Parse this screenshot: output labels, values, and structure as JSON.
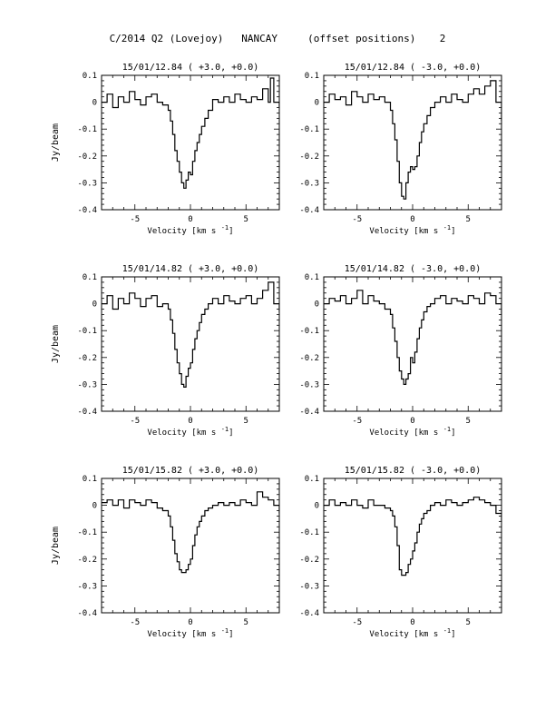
{
  "figure": {
    "title": "C/2014 Q2 (Lovejoy)   NANCAY     (offset positions)    2"
  },
  "chart_data": [
    {
      "type": "line",
      "title": "15/01/12.84  ( +3.0, +0.0)",
      "xlabel": "Velocity [km s",
      "xlabel_sup": "-1",
      "xlabel_close": "]",
      "ylabel": "Jy/beam",
      "xlim": [
        -8,
        8
      ],
      "ylim": [
        -0.4,
        0.1
      ],
      "xticks": [
        -5,
        0,
        5
      ],
      "yticks": [
        -0.4,
        -0.3,
        -0.2,
        -0.1,
        0,
        0.1
      ],
      "ytick_labels": [
        "-0.4",
        "-0.3",
        "-0.2",
        "-0.1",
        "0",
        "0.1"
      ],
      "series": [
        {
          "x": [
            -8,
            -7.5,
            -7,
            -6.5,
            -6,
            -5.5,
            -5,
            -4.5,
            -4,
            -3.5,
            -3,
            -2.5,
            -2,
            -1.8,
            -1.6,
            -1.4,
            -1.2,
            -1.0,
            -0.8,
            -0.6,
            -0.4,
            -0.2,
            0,
            0.2,
            0.4,
            0.6,
            0.8,
            1.0,
            1.3,
            1.6,
            2,
            2.5,
            3,
            3.5,
            4,
            4.5,
            5,
            5.5,
            6,
            6.5,
            7,
            7.2,
            7.5,
            8
          ],
          "y": [
            0.0,
            0.03,
            -0.02,
            0.02,
            0.0,
            0.04,
            0.01,
            -0.01,
            0.02,
            0.03,
            0.0,
            -0.01,
            -0.03,
            -0.07,
            -0.12,
            -0.18,
            -0.22,
            -0.26,
            -0.3,
            -0.32,
            -0.29,
            -0.26,
            -0.27,
            -0.22,
            -0.18,
            -0.15,
            -0.12,
            -0.09,
            -0.06,
            -0.03,
            0.01,
            0.0,
            0.02,
            0.0,
            0.03,
            0.01,
            0.0,
            0.02,
            0.01,
            0.05,
            0.0,
            0.09,
            0.0,
            -0.02
          ]
        }
      ]
    },
    {
      "type": "line",
      "title": "15/01/12.84  ( -3.0, +0.0)",
      "xlabel": "Velocity [km s",
      "xlabel_sup": "-1",
      "xlabel_close": "]",
      "ylabel": "",
      "xlim": [
        -8,
        8
      ],
      "ylim": [
        -0.4,
        0.1
      ],
      "xticks": [
        -5,
        0,
        5
      ],
      "yticks": [
        -0.4,
        -0.3,
        -0.2,
        -0.1,
        0,
        0.1
      ],
      "ytick_labels": [
        "-0.4",
        "-0.3",
        "-0.2",
        "-0.1",
        "0",
        "0.1"
      ],
      "series": [
        {
          "x": [
            -8,
            -7.5,
            -7,
            -6.5,
            -6,
            -5.5,
            -5,
            -4.5,
            -4,
            -3.5,
            -3,
            -2.5,
            -2,
            -1.8,
            -1.6,
            -1.4,
            -1.2,
            -1.0,
            -0.8,
            -0.6,
            -0.4,
            -0.2,
            0,
            0.2,
            0.4,
            0.6,
            0.8,
            1.0,
            1.3,
            1.6,
            2,
            2.5,
            3,
            3.5,
            4,
            4.5,
            5,
            5.5,
            6,
            6.5,
            7,
            7.5,
            8
          ],
          "y": [
            0.0,
            0.03,
            0.01,
            0.02,
            -0.01,
            0.04,
            0.02,
            0.0,
            0.03,
            0.01,
            0.02,
            0.0,
            -0.03,
            -0.08,
            -0.14,
            -0.22,
            -0.3,
            -0.35,
            -0.36,
            -0.3,
            -0.26,
            -0.24,
            -0.25,
            -0.24,
            -0.2,
            -0.15,
            -0.11,
            -0.08,
            -0.05,
            -0.02,
            0.0,
            0.02,
            0.0,
            0.03,
            0.01,
            0.0,
            0.03,
            0.05,
            0.03,
            0.06,
            0.08,
            0.0,
            -0.07
          ]
        }
      ]
    },
    {
      "type": "line",
      "title": "15/01/14.82  ( +3.0, +0.0)",
      "xlabel": "Velocity [km s",
      "xlabel_sup": "-1",
      "xlabel_close": "]",
      "ylabel": "Jy/beam",
      "xlim": [
        -8,
        8
      ],
      "ylim": [
        -0.4,
        0.1
      ],
      "xticks": [
        -5,
        0,
        5
      ],
      "yticks": [
        -0.4,
        -0.3,
        -0.2,
        -0.1,
        0,
        0.1
      ],
      "ytick_labels": [
        "-0.4",
        "-0.3",
        "-0.2",
        "-0.1",
        "0",
        "0.1"
      ],
      "series": [
        {
          "x": [
            -8,
            -7.5,
            -7,
            -6.5,
            -6,
            -5.5,
            -5,
            -4.5,
            -4,
            -3.5,
            -3,
            -2.5,
            -2,
            -1.8,
            -1.6,
            -1.4,
            -1.2,
            -1.0,
            -0.8,
            -0.6,
            -0.4,
            -0.2,
            0,
            0.2,
            0.4,
            0.6,
            0.8,
            1.0,
            1.3,
            1.6,
            2,
            2.5,
            3,
            3.5,
            4,
            4.5,
            5,
            5.5,
            6,
            6.5,
            7,
            7.5,
            8
          ],
          "y": [
            0.0,
            0.03,
            -0.02,
            0.02,
            0.0,
            0.04,
            0.02,
            -0.01,
            0.02,
            0.03,
            -0.01,
            0.0,
            -0.02,
            -0.06,
            -0.11,
            -0.17,
            -0.22,
            -0.26,
            -0.3,
            -0.31,
            -0.27,
            -0.24,
            -0.22,
            -0.17,
            -0.13,
            -0.1,
            -0.07,
            -0.04,
            -0.02,
            0.0,
            0.02,
            0.0,
            0.03,
            0.01,
            0.0,
            0.02,
            0.03,
            0.0,
            0.02,
            0.05,
            0.08,
            0.0,
            -0.03
          ]
        }
      ]
    },
    {
      "type": "line",
      "title": "15/01/14.82  ( -3.0, +0.0)",
      "xlabel": "Velocity [km s",
      "xlabel_sup": "-1",
      "xlabel_close": "]",
      "ylabel": "",
      "xlim": [
        -8,
        8
      ],
      "ylim": [
        -0.4,
        0.1
      ],
      "xticks": [
        -5,
        0,
        5
      ],
      "yticks": [
        -0.4,
        -0.3,
        -0.2,
        -0.1,
        0,
        0.1
      ],
      "ytick_labels": [
        "-0.4",
        "-0.3",
        "-0.2",
        "-0.1",
        "0",
        "0.1"
      ],
      "series": [
        {
          "x": [
            -8,
            -7.5,
            -7,
            -6.5,
            -6,
            -5.5,
            -5,
            -4.5,
            -4,
            -3.5,
            -3,
            -2.5,
            -2,
            -1.8,
            -1.6,
            -1.4,
            -1.2,
            -1.0,
            -0.8,
            -0.6,
            -0.4,
            -0.2,
            0,
            0.2,
            0.4,
            0.6,
            0.8,
            1.0,
            1.3,
            1.6,
            2,
            2.5,
            3,
            3.5,
            4,
            4.5,
            5,
            5.5,
            6,
            6.5,
            7,
            7.5,
            8
          ],
          "y": [
            0.0,
            0.02,
            0.01,
            0.03,
            0.0,
            0.02,
            0.05,
            0.0,
            0.03,
            0.01,
            0.0,
            -0.02,
            -0.04,
            -0.09,
            -0.14,
            -0.2,
            -0.25,
            -0.28,
            -0.3,
            -0.28,
            -0.26,
            -0.2,
            -0.22,
            -0.18,
            -0.13,
            -0.09,
            -0.06,
            -0.03,
            -0.01,
            0.0,
            0.02,
            0.03,
            0.0,
            0.02,
            0.01,
            0.0,
            0.03,
            0.02,
            0.0,
            0.04,
            0.03,
            0.0,
            -0.04
          ]
        }
      ]
    },
    {
      "type": "line",
      "title": "15/01/15.82  ( +3.0, +0.0)",
      "xlabel": "Velocity [km s",
      "xlabel_sup": "-1",
      "xlabel_close": "]",
      "ylabel": "Jy/beam",
      "xlim": [
        -8,
        8
      ],
      "ylim": [
        -0.4,
        0.1
      ],
      "xticks": [
        -5,
        0,
        5
      ],
      "yticks": [
        -0.4,
        -0.3,
        -0.2,
        -0.1,
        0,
        0.1
      ],
      "ytick_labels": [
        "-0.4",
        "-0.3",
        "-0.2",
        "-0.1",
        "0",
        "0.1"
      ],
      "series": [
        {
          "x": [
            -8,
            -7.5,
            -7,
            -6.5,
            -6,
            -5.5,
            -5,
            -4.5,
            -4,
            -3.5,
            -3,
            -2.5,
            -2,
            -1.8,
            -1.6,
            -1.4,
            -1.2,
            -1.0,
            -0.8,
            -0.6,
            -0.4,
            -0.2,
            0,
            0.2,
            0.4,
            0.6,
            0.8,
            1.0,
            1.3,
            1.6,
            2,
            2.5,
            3,
            3.5,
            4,
            4.5,
            5,
            5.5,
            6,
            6.5,
            7,
            7.5,
            8
          ],
          "y": [
            0.01,
            0.02,
            0.0,
            0.02,
            -0.01,
            0.02,
            0.01,
            0.0,
            0.02,
            0.01,
            -0.01,
            -0.02,
            -0.04,
            -0.08,
            -0.13,
            -0.18,
            -0.21,
            -0.24,
            -0.25,
            -0.25,
            -0.24,
            -0.22,
            -0.2,
            -0.15,
            -0.11,
            -0.08,
            -0.06,
            -0.04,
            -0.02,
            -0.01,
            0.0,
            0.01,
            0.0,
            0.01,
            0.0,
            0.02,
            0.01,
            0.0,
            0.05,
            0.03,
            0.02,
            0.0,
            -0.03
          ]
        }
      ]
    },
    {
      "type": "line",
      "title": "15/01/15.82  ( -3.0, +0.0)",
      "xlabel": "Velocity [km s",
      "xlabel_sup": "-1",
      "xlabel_close": "]",
      "ylabel": "",
      "xlim": [
        -8,
        8
      ],
      "ylim": [
        -0.4,
        0.1
      ],
      "xticks": [
        -5,
        0,
        5
      ],
      "yticks": [
        -0.4,
        -0.3,
        -0.2,
        -0.1,
        0,
        0.1
      ],
      "ytick_labels": [
        "-0.4",
        "-0.3",
        "-0.2",
        "-0.1",
        "0",
        "0.1"
      ],
      "series": [
        {
          "x": [
            -8,
            -7.5,
            -7,
            -6.5,
            -6,
            -5.5,
            -5,
            -4.5,
            -4,
            -3.5,
            -3,
            -2.5,
            -2,
            -1.8,
            -1.6,
            -1.4,
            -1.2,
            -1.0,
            -0.8,
            -0.6,
            -0.4,
            -0.2,
            0,
            0.2,
            0.4,
            0.6,
            0.8,
            1.0,
            1.3,
            1.6,
            2,
            2.5,
            3,
            3.5,
            4,
            4.5,
            5,
            5.5,
            6,
            6.5,
            7,
            7.5,
            8
          ],
          "y": [
            0.0,
            0.02,
            0.0,
            0.01,
            0.0,
            0.02,
            0.0,
            -0.01,
            0.02,
            0.0,
            0.0,
            -0.01,
            -0.02,
            -0.04,
            -0.08,
            -0.15,
            -0.24,
            -0.26,
            -0.26,
            -0.25,
            -0.22,
            -0.2,
            -0.17,
            -0.14,
            -0.1,
            -0.07,
            -0.05,
            -0.03,
            -0.02,
            0.0,
            0.01,
            0.0,
            0.02,
            0.01,
            0.0,
            0.01,
            0.02,
            0.03,
            0.02,
            0.01,
            0.0,
            -0.03,
            -0.06
          ]
        }
      ]
    }
  ]
}
